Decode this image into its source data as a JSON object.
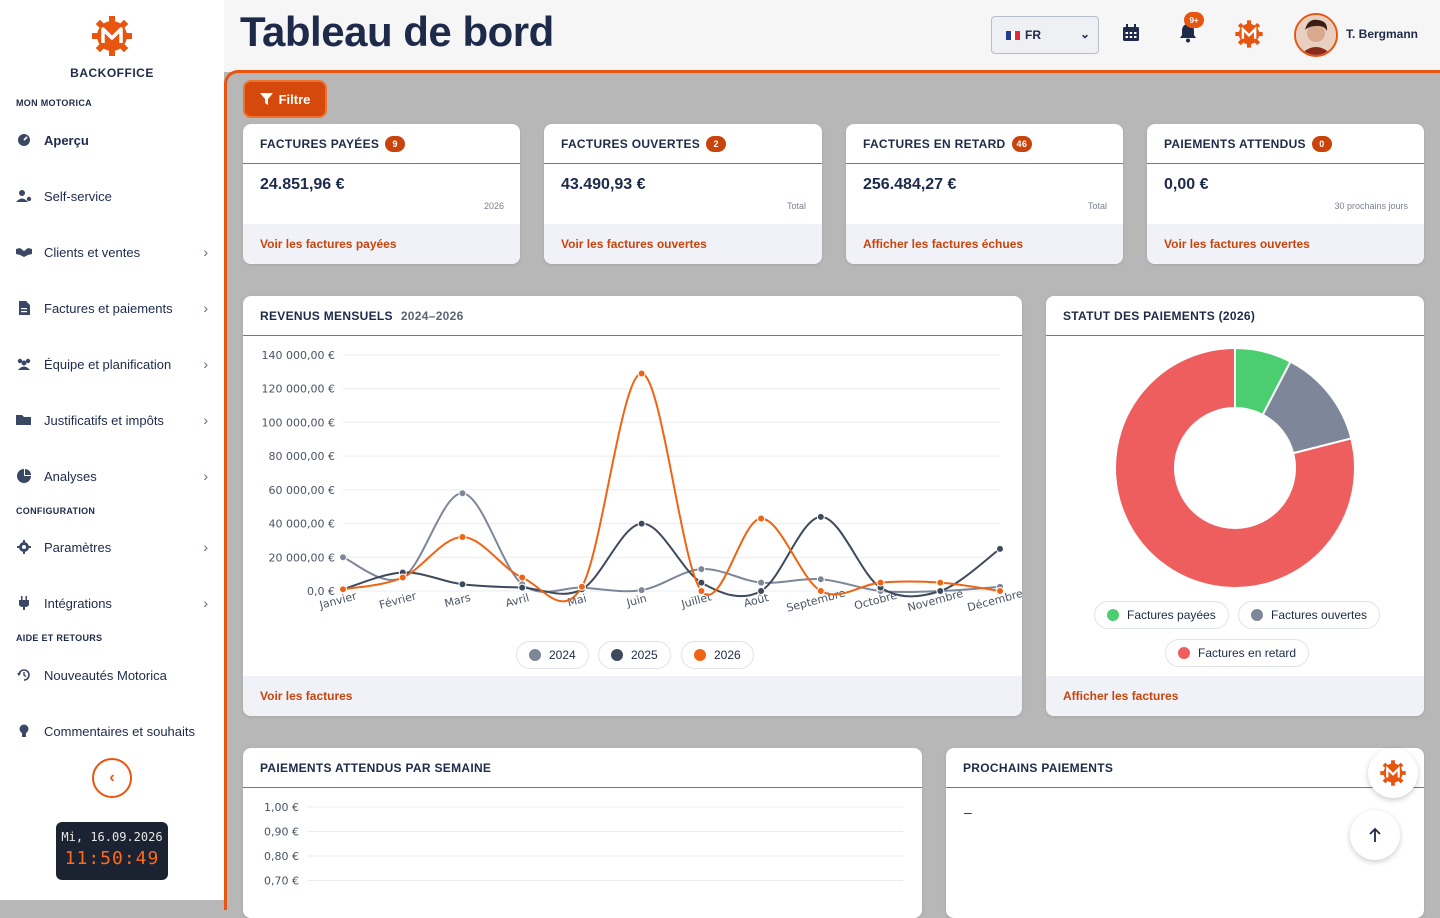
{
  "sidebar": {
    "brand": "BACKOFFICE",
    "sections": {
      "mon": "MON MOTORICA",
      "config": "CONFIGURATION",
      "aide": "AIDE ET RETOURS"
    },
    "items": [
      {
        "label": "Aperçu",
        "icon": "gauge-icon"
      },
      {
        "label": "Self-service",
        "icon": "user-gear-icon"
      },
      {
        "label": "Clients et ventes",
        "icon": "handshake-icon"
      },
      {
        "label": "Factures et paiements",
        "icon": "invoice-icon"
      },
      {
        "label": "Équipe et planification",
        "icon": "team-icon"
      },
      {
        "label": "Justificatifs et impôts",
        "icon": "folder-icon"
      },
      {
        "label": "Analyses",
        "icon": "pie-icon"
      },
      {
        "label": "Paramètres",
        "icon": "gear-icon"
      },
      {
        "label": "Intégrations",
        "icon": "plug-icon"
      },
      {
        "label": "Nouveautés Motorica",
        "icon": "history-icon"
      },
      {
        "label": "Commentaires et souhaits",
        "icon": "lightbulb-icon"
      }
    ],
    "clock": {
      "date": "Mi, 16.09.2026",
      "time": "11:50:49"
    }
  },
  "header": {
    "title": "Tableau de bord",
    "language": "FR",
    "notifications_badge": "9+",
    "user_name": "T. Bergmann"
  },
  "filter_label": "Filtre",
  "stat_cards": [
    {
      "title": "FACTURES PAYÉES",
      "count": "9",
      "amount": "24.851,96 €",
      "sub": "2026",
      "link": "Voir les factures payées"
    },
    {
      "title": "FACTURES OUVERTES",
      "count": "2",
      "amount": "43.490,93 €",
      "sub": "Total",
      "link": "Voir les factures ouvertes"
    },
    {
      "title": "FACTURES EN RETARD",
      "count": "46",
      "amount": "256.484,27 €",
      "sub": "Total",
      "link": "Afficher les factures échues"
    },
    {
      "title": "PAIEMENTS ATTENDUS",
      "count": "0",
      "amount": "0,00 €",
      "sub": "30 prochains jours",
      "link": "Voir les factures ouvertes"
    }
  ],
  "revenue": {
    "title": "REVENUS MENSUELS",
    "range": "2024–2026",
    "link": "Voir les factures"
  },
  "status": {
    "title": "STATUT DES PAIEMENTS (2026)",
    "link": "Afficher les factures"
  },
  "weekly": {
    "title": "PAIEMENTS ATTENDUS PAR SEMAINE"
  },
  "upcoming": {
    "title": "PROCHAINS PAIEMENTS",
    "empty": "–"
  },
  "colors": {
    "accent": "#e8550f",
    "navy": "#1d2a4a"
  },
  "chart_data": [
    {
      "type": "line",
      "title": "REVENUS MENSUELS",
      "categories": [
        "Janvier",
        "Février",
        "Mars",
        "Avril",
        "Mai",
        "Juin",
        "Juillet",
        "Août",
        "Septembre",
        "Octobre",
        "Novembre",
        "Décembre"
      ],
      "ylim": [
        0,
        140000
      ],
      "yticks": [
        "0,0 €",
        "20 000,00 €",
        "40 000,00 €",
        "60 000,00 €",
        "80 000,00 €",
        "100 000,00 €",
        "120 000,00 €",
        "140 000,00 €"
      ],
      "series": [
        {
          "name": "2024",
          "color": "#7d8799",
          "values": [
            20000,
            8000,
            58000,
            4000,
            2000,
            500,
            13000,
            5000,
            7000,
            0,
            0,
            2500
          ]
        },
        {
          "name": "2025",
          "color": "#3e4a5c",
          "values": [
            1000,
            11000,
            4000,
            2000,
            1000,
            40000,
            5000,
            0,
            44000,
            2000,
            0,
            25000
          ]
        },
        {
          "name": "2026",
          "color": "#ee6414",
          "values": [
            1000,
            8000,
            32000,
            8000,
            2500,
            129000,
            0,
            43000,
            0,
            5000,
            5000,
            0
          ]
        }
      ]
    },
    {
      "type": "pie",
      "title": "STATUT DES PAIEMENTS (2026)",
      "labels": [
        "Factures payées",
        "Factures ouvertes",
        "Factures en retard"
      ],
      "values": [
        24851.96,
        43490.93,
        256484.27
      ],
      "colors": [
        "#4bce6f",
        "#7d8799",
        "#ef5e5e"
      ]
    },
    {
      "type": "bar",
      "title": "PAIEMENTS ATTENDUS PAR SEMAINE",
      "yticks": [
        "1,00 €",
        "0,90 €",
        "0,80 €",
        "0,70 €"
      ],
      "values": []
    }
  ]
}
